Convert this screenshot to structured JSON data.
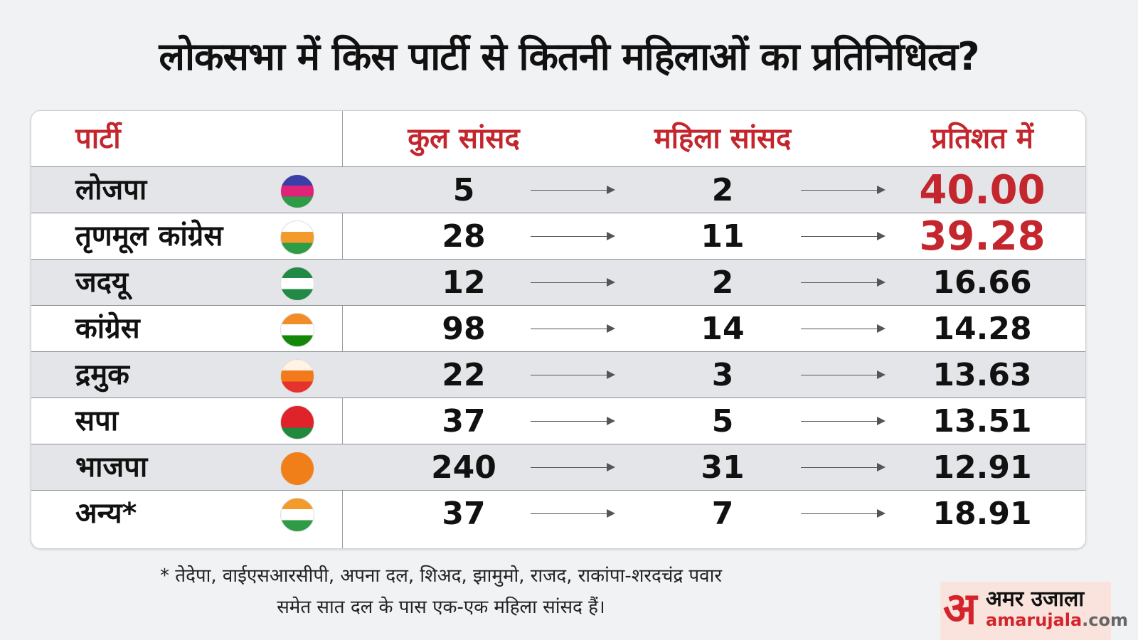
{
  "title": "लोकसभा में किस पार्टी से कितनी महिलाओं का प्रतिनिधित्व?",
  "chart_data": {
    "type": "table",
    "columns": [
      "पार्टी",
      "कुल सांसद",
      "महिला सांसद",
      "प्रतिशत में"
    ],
    "rows": [
      {
        "party": "लोजपा",
        "logo": "ljp-hand-logo",
        "total": "5",
        "women": "2",
        "percent": "40.00",
        "highlight": true,
        "colors": [
          "#3a3fa8",
          "#e0237a",
          "#2e9b46"
        ]
      },
      {
        "party": "तृणमूल कांग्रेस",
        "logo": "tmc-flowers-logo",
        "total": "28",
        "women": "11",
        "percent": "39.28",
        "highlight": true,
        "colors": [
          "#ffffff",
          "#f39a2b",
          "#2e9b46"
        ]
      },
      {
        "party": "जदयू",
        "logo": "jdu-arrow-logo",
        "total": "12",
        "women": "2",
        "percent": "16.66",
        "highlight": false,
        "colors": [
          "#218a45",
          "#ffffff",
          "#218a45"
        ]
      },
      {
        "party": "कांग्रेस",
        "logo": "congress-hand-logo",
        "total": "98",
        "women": "14",
        "percent": "14.28",
        "highlight": false,
        "colors": [
          "#f28c28",
          "#ffffff",
          "#138808"
        ]
      },
      {
        "party": "द्रमुक",
        "logo": "dmk-sun-logo",
        "total": "22",
        "women": "3",
        "percent": "13.63",
        "highlight": false,
        "colors": [
          "#fff3e6",
          "#f27a1a",
          "#e5322d"
        ]
      },
      {
        "party": "सपा",
        "logo": "sp-cycle-logo",
        "total": "37",
        "women": "5",
        "percent": "13.51",
        "highlight": false,
        "colors": [
          "#e0232b",
          "#e0232b",
          "#1f8a3d"
        ]
      },
      {
        "party": "भाजपा",
        "logo": "bjp-lotus-logo",
        "total": "240",
        "women": "31",
        "percent": "12.91",
        "highlight": false,
        "colors": [
          "#f07f1a",
          "#f07f1a",
          "#f07f1a"
        ]
      },
      {
        "party": "अन्य*",
        "logo": "ncp-clock-logo",
        "total": "37",
        "women": "7",
        "percent": "18.91",
        "highlight": false,
        "colors": [
          "#f39a2b",
          "#ffffff",
          "#2e9b46"
        ]
      }
    ]
  },
  "footnote": {
    "line1": "* तेदेपा, वाईएसआरसीपी, अपना दल, शिअद, झामुमो, राजद, राकांपा-शरदचंद्र पवार",
    "line2": "समेत सात दल के पास एक-एक महिला सांसद हैं।"
  },
  "brand": {
    "mark": "अ",
    "name": "अमर उजाला",
    "domain": "amarujala",
    "tld": ".com"
  }
}
